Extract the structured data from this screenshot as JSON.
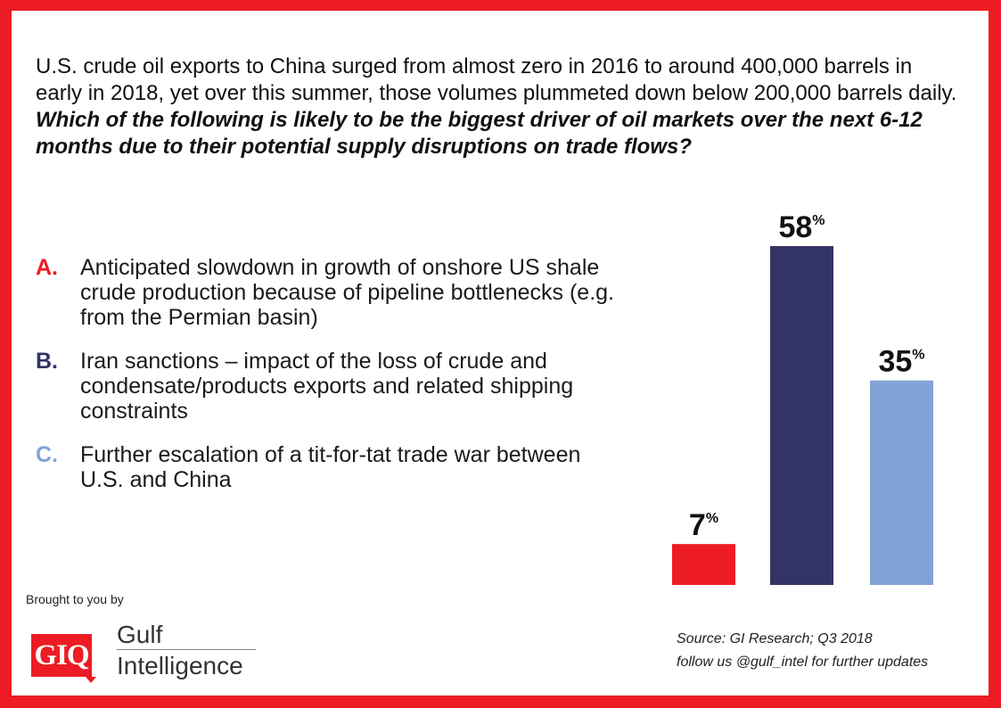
{
  "question": {
    "intro": "U.S. crude oil exports to China surged from almost zero in 2016 to around 400,000 barrels in early in 2018, yet over this summer, those volumes plummeted down below 200,000 barrels daily.",
    "bold": "Which of the following is likely to be the biggest driver of oil markets over the next 6-12 months due to their potential supply disruptions on trade flows?"
  },
  "options": [
    {
      "letter": "A.",
      "text": "Anticipated slowdown in growth of onshore US shale crude production because of pipeline bottlenecks (e.g. from the Permian basin)",
      "color": "#ed1c24"
    },
    {
      "letter": "B.",
      "text": "Iran sanctions – impact of the loss of crude and condensate/products exports and related shipping constraints",
      "color": "#333366"
    },
    {
      "letter": "C.",
      "text": "Further escalation of a tit-for-tat trade war between U.S. and China",
      "color": "#82a3d6"
    }
  ],
  "chart_data": {
    "type": "bar",
    "categories": [
      "A.",
      "B.",
      "C."
    ],
    "values": [
      7,
      58,
      35
    ],
    "labels": [
      "7",
      "58",
      "35"
    ],
    "unit": "%",
    "colors": [
      "#ed1c24",
      "#333366",
      "#82a3d6"
    ],
    "ylim": [
      0,
      60
    ],
    "grid": false,
    "legend": "none"
  },
  "footer": {
    "brought_by": "Brought to you by",
    "logo_mark": "GIQ",
    "logo_line1": "Gulf",
    "logo_line2": "Intelligence",
    "source": "Source: GI Research; Q3 2018",
    "follow": "follow us @gulf_intel for further updates"
  },
  "colors": {
    "frame": "#ed1c24",
    "background": "#ffffff"
  }
}
